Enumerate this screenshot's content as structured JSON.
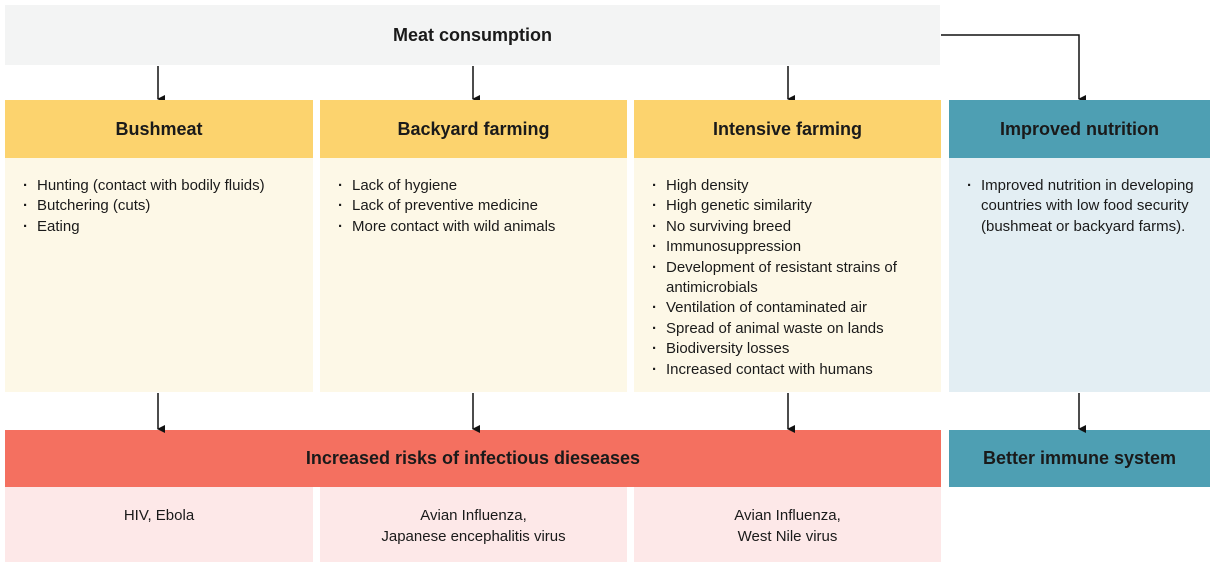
{
  "top": {
    "label": "Meat consumption"
  },
  "columns": [
    {
      "title": "Bushmeat",
      "items": [
        "Hunting (contact with bodily fluids)",
        "Butchering (cuts)",
        "Eating"
      ]
    },
    {
      "title": "Backyard farming",
      "items": [
        "Lack of hygiene",
        "Lack of preventive medicine",
        "More contact with wild animals"
      ]
    },
    {
      "title": "Intensive farming",
      "items": [
        "High density",
        "High genetic similarity",
        "No surviving breed",
        "Immunosuppression",
        "Development of resistant strains of antimicrobials",
        "Ventilation of contaminated air",
        "Spread of animal waste on lands",
        "Biodiversity losses",
        "Increased contact with humans"
      ]
    },
    {
      "title": "Improved nutrition",
      "items": [
        "Improved nutrition in developing countries with low food security (bushmeat or backyard farms)."
      ]
    }
  ],
  "risk": {
    "title": "Increased risks of infectious dieseases",
    "diseases": [
      [
        "HIV, Ebola"
      ],
      [
        "Avian Influenza,",
        "Japanese encephalitis virus"
      ],
      [
        "Avian Influenza,",
        "West Nile virus"
      ]
    ]
  },
  "benefit": {
    "title": "Better immune system"
  }
}
